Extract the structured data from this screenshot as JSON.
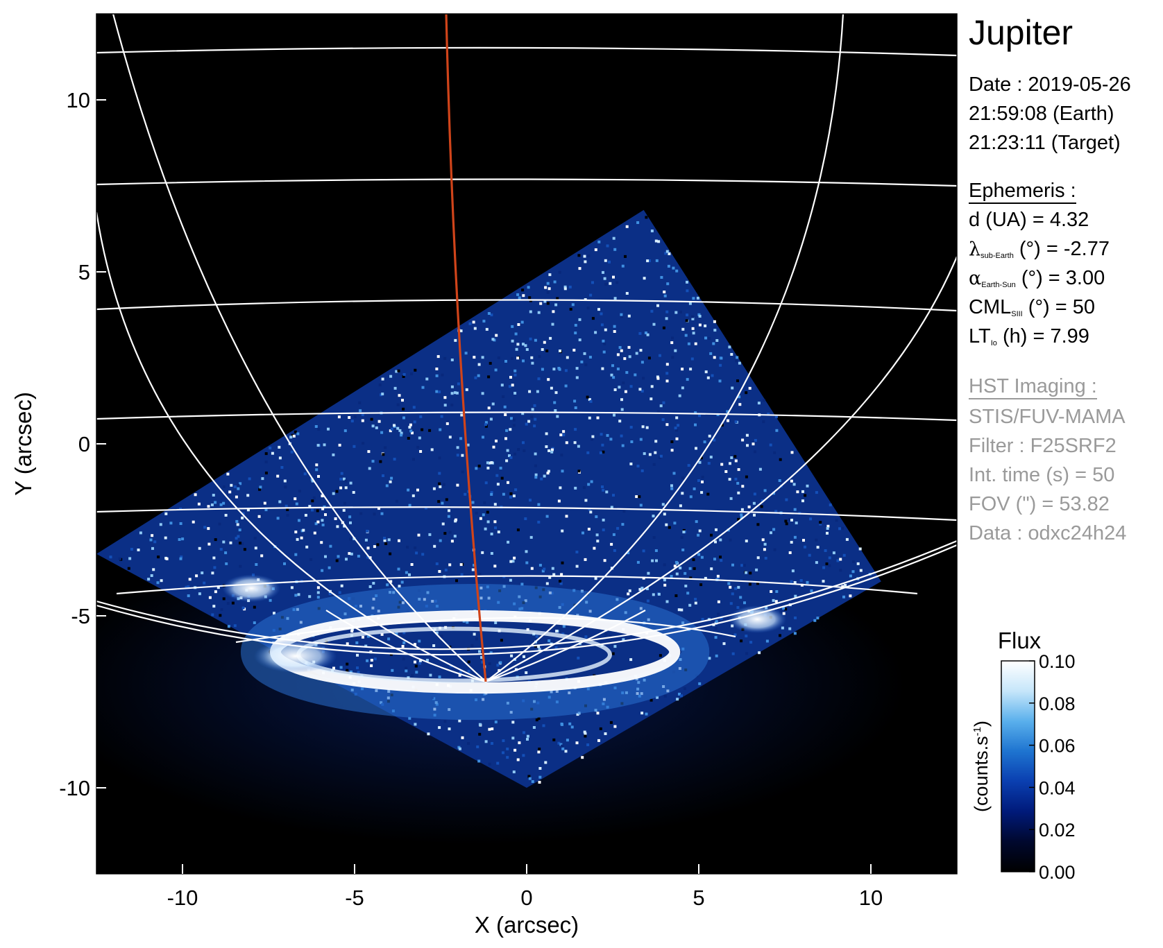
{
  "chart_data": {
    "type": "heatmap",
    "xlabel": "X (arcsec)",
    "ylabel": "Y (arcsec)",
    "xlim": [
      -12.5,
      12.5
    ],
    "ylim": [
      -12.5,
      12.5
    ],
    "xticks": [
      -10,
      -5,
      0,
      5,
      10
    ],
    "yticks": [
      -10,
      -5,
      0,
      5,
      10
    ],
    "xtick_labels": [
      "-10",
      "-5",
      "0",
      "5",
      "10"
    ],
    "ytick_labels": [
      "-10",
      "-5",
      "0",
      "5",
      "10"
    ],
    "background_color": "#000000",
    "grid_color": "#ffffff",
    "meridian_color": "#d0441a",
    "detector_region_corners": [
      [
        -12.5,
        -3.2
      ],
      [
        3.4,
        6.8
      ],
      [
        10.3,
        -4.0
      ],
      [
        0.0,
        -10.0
      ]
    ],
    "main_auroral_oval": {
      "center": [
        -1.5,
        -6.05
      ],
      "semi_axes": [
        5.8,
        1.05
      ]
    },
    "bright_spots": [
      [
        -8.0,
        -4.2
      ],
      [
        6.7,
        -5.1
      ]
    ],
    "colorbar": {
      "title": "Flux",
      "label": "(counts.s-1)",
      "label_main": "(counts.s",
      "label_exp": "-1",
      "label_close": ")",
      "range": [
        0.0,
        0.1
      ],
      "ticks": [
        "0.10",
        "0.08",
        "0.06",
        "0.04",
        "0.02",
        "0.00"
      ],
      "colors": [
        "#000000",
        "#00082e",
        "#001a7a",
        "#0a3fb0",
        "#1e74d0",
        "#5ab0ec",
        "#c6e6fa",
        "#ffffff"
      ]
    }
  },
  "panel": {
    "title": "Jupiter",
    "date_line": "Date : 2019-05-26",
    "earth_time": "21:59:08 (Earth)",
    "target_time": "21:23:11 (Target)",
    "ephemeris_header": "Ephemeris :",
    "distance": "d (UA)    = 4.32",
    "lambda_symbol": "λ",
    "lambda_sub": "sub-Earth",
    "lambda_rest": " (°) = -2.77",
    "alpha_symbol": "α",
    "alpha_sub": "Earth-Sun",
    "alpha_rest": " (°) = 3.00",
    "cml_main": "CML",
    "cml_sub": "SIII",
    "cml_rest": " (°) = 50",
    "lt_main": "LT",
    "lt_sub": "Io",
    "lt_rest": " (h) = 7.99",
    "hst_header": "HST Imaging :",
    "instrument": "STIS/FUV-MAMA",
    "filter": "Filter : F25SRF2",
    "int_time": "Int. time (s) = 50",
    "fov": "FOV (\") = 53.82",
    "data_id": "Data : odxc24h24"
  }
}
